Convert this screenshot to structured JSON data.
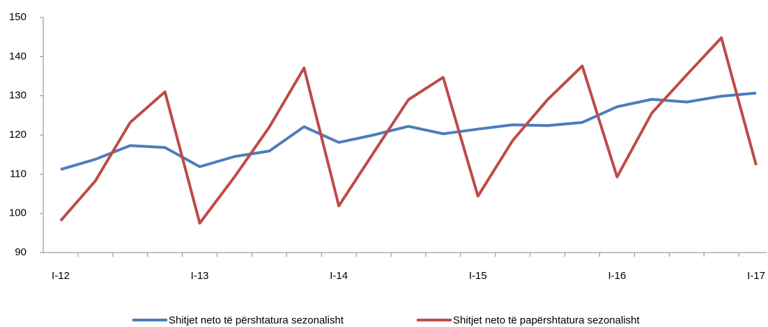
{
  "chart_data": {
    "type": "line",
    "categories": [
      "I-12",
      null,
      null,
      null,
      "I-13",
      null,
      null,
      null,
      "I-14",
      null,
      null,
      null,
      "I-15",
      null,
      null,
      null,
      "I-16",
      null,
      null,
      null,
      "I-17"
    ],
    "series": [
      {
        "name": "Shitjet neto të përshtatura sezonalisht",
        "color": "#4a7ebb",
        "values": [
          111.2,
          113.8,
          117.3,
          116.8,
          111.9,
          114.5,
          115.9,
          122.1,
          118.1,
          120.0,
          122.2,
          120.3,
          121.5,
          122.6,
          122.4,
          123.2,
          127.2,
          129.1,
          128.4,
          129.9,
          130.7
        ]
      },
      {
        "name": "Shitjet neto të papërshtatura sezonalisht",
        "color": "#be4b48",
        "values": [
          98.1,
          108.3,
          123.2,
          131.0,
          97.5,
          109.3,
          122.0,
          137.1,
          101.9,
          115.5,
          129.0,
          134.7,
          104.4,
          118.6,
          129.0,
          137.6,
          109.3,
          125.6,
          135.3,
          144.8,
          112.3
        ]
      }
    ],
    "ylim": [
      90,
      150
    ],
    "yticks": [
      90,
      100,
      110,
      120,
      130,
      140,
      150
    ],
    "grid": false,
    "legend": "bottom"
  }
}
